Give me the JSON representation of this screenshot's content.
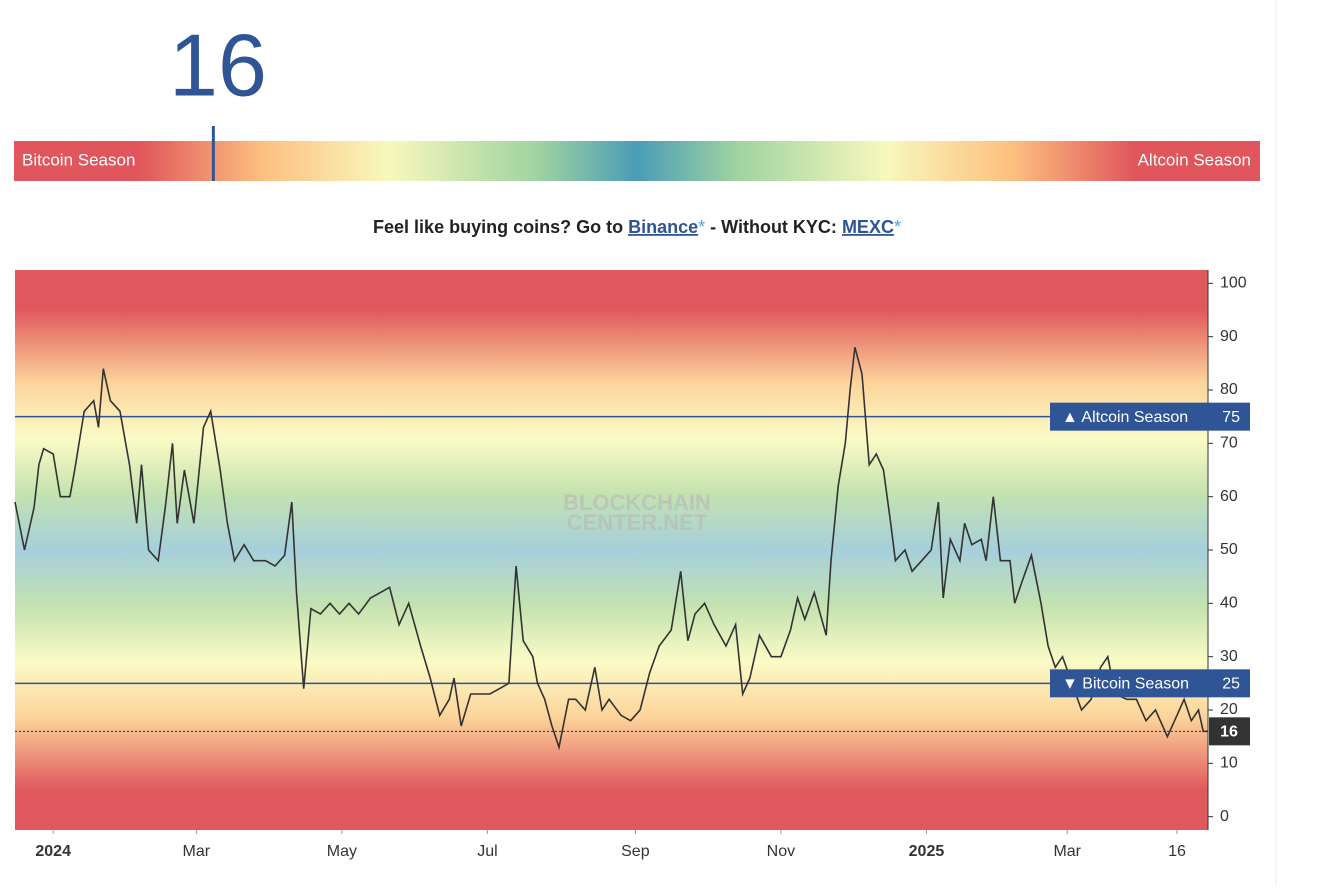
{
  "gauge": {
    "left_label": "Bitcoin Season",
    "right_label": "Altcoin Season"
  },
  "promo": {
    "text_before": "Feel like buying coins? Go to ",
    "link1": "Binance",
    "star": "*",
    "text_middle": " - Without KYC: ",
    "link2": "MEXC"
  },
  "watermark": [
    "BLOCKCHAIN",
    "CENTER.NET"
  ],
  "chart_data": {
    "type": "line",
    "x": [
      -16,
      -12,
      -8,
      -6,
      -4,
      0,
      3,
      7,
      9,
      13,
      17,
      19,
      21,
      24,
      28,
      32,
      35,
      37,
      40,
      44,
      47,
      50,
      52,
      55,
      59,
      63,
      66,
      70,
      73,
      76,
      80,
      84,
      89,
      93,
      97,
      100,
      102,
      105,
      108,
      112,
      116,
      120,
      124,
      128,
      133,
      137,
      141,
      145,
      149,
      154,
      158,
      162,
      166,
      168,
      171,
      175,
      179,
      183,
      187,
      191,
      194,
      197,
      201,
      203,
      206,
      209,
      212,
      216,
      219,
      223,
      227,
      230,
      233,
      238,
      242,
      246,
      250,
      254,
      259,
      263,
      266,
      269,
      273,
      277,
      282,
      286,
      289,
      292,
      296,
      301,
      305,
      309,
      312,
      315,
      319,
      324,
      326,
      329,
      332,
      334,
      336,
      339,
      342,
      345,
      348,
      351,
      353,
      357,
      360,
      364,
      368,
      371,
      373,
      376,
      380,
      382,
      385,
      389,
      391,
      394,
      397,
      401,
      403,
      406,
      410,
      414,
      417,
      420,
      423,
      427,
      431,
      435,
      439,
      442,
      445,
      450,
      454,
      458,
      462,
      467,
      471,
      474,
      477,
      480,
      482,
      484
    ],
    "series": [
      {
        "color": "#333333",
        "values": [
          59,
          50,
          58,
          66,
          69,
          68,
          60,
          60,
          65,
          76,
          78,
          73,
          84,
          78,
          76,
          66,
          55,
          66,
          50,
          48,
          58,
          70,
          55,
          65,
          55,
          73,
          76,
          65,
          55,
          48,
          51,
          48,
          48,
          47,
          49,
          59,
          42,
          24,
          39,
          38,
          40,
          38,
          40,
          38,
          41,
          42,
          43,
          36,
          40,
          32,
          26,
          19,
          22,
          26,
          17,
          23,
          23,
          23,
          24,
          25,
          47,
          33,
          30,
          25,
          22,
          17,
          13,
          22,
          22,
          20,
          28,
          20,
          22,
          19,
          18,
          20,
          27,
          32,
          35,
          46,
          33,
          38,
          40,
          36,
          32,
          36,
          23,
          26,
          34,
          30,
          30,
          35,
          41,
          37,
          42,
          34,
          48,
          62,
          70,
          80,
          88,
          83,
          66,
          68,
          65,
          55,
          48,
          50,
          46,
          48,
          50,
          59,
          41,
          52,
          48,
          55,
          51,
          52,
          48,
          60,
          48,
          48,
          40,
          44,
          49,
          40,
          32,
          28,
          30,
          25,
          20,
          22,
          28,
          30,
          23,
          22,
          22,
          18,
          20,
          15,
          19,
          22,
          18,
          20,
          16,
          16
        ]
      }
    ],
    "xlim": [
      -16,
      484
    ],
    "xticks": [
      {
        "value": 0,
        "label": "2024"
      },
      {
        "value": 60,
        "label": "Mar"
      },
      {
        "value": 121,
        "label": "May"
      },
      {
        "value": 182,
        "label": "Jul"
      },
      {
        "value": 244,
        "label": "Sep"
      },
      {
        "value": 305,
        "label": "Nov"
      },
      {
        "value": 366,
        "label": "2025"
      },
      {
        "value": 425,
        "label": "Mar"
      },
      {
        "value": 471,
        "label": "16"
      }
    ],
    "ylim": [
      -2.5,
      102.5
    ],
    "yticks": [
      0,
      10,
      20,
      30,
      40,
      50,
      60,
      70,
      80,
      90,
      100
    ],
    "thresholds": [
      {
        "label": "▲ Altcoin Season",
        "value": 75
      },
      {
        "label": "▼ Bitcoin Season",
        "value": 25
      }
    ]
  }
}
